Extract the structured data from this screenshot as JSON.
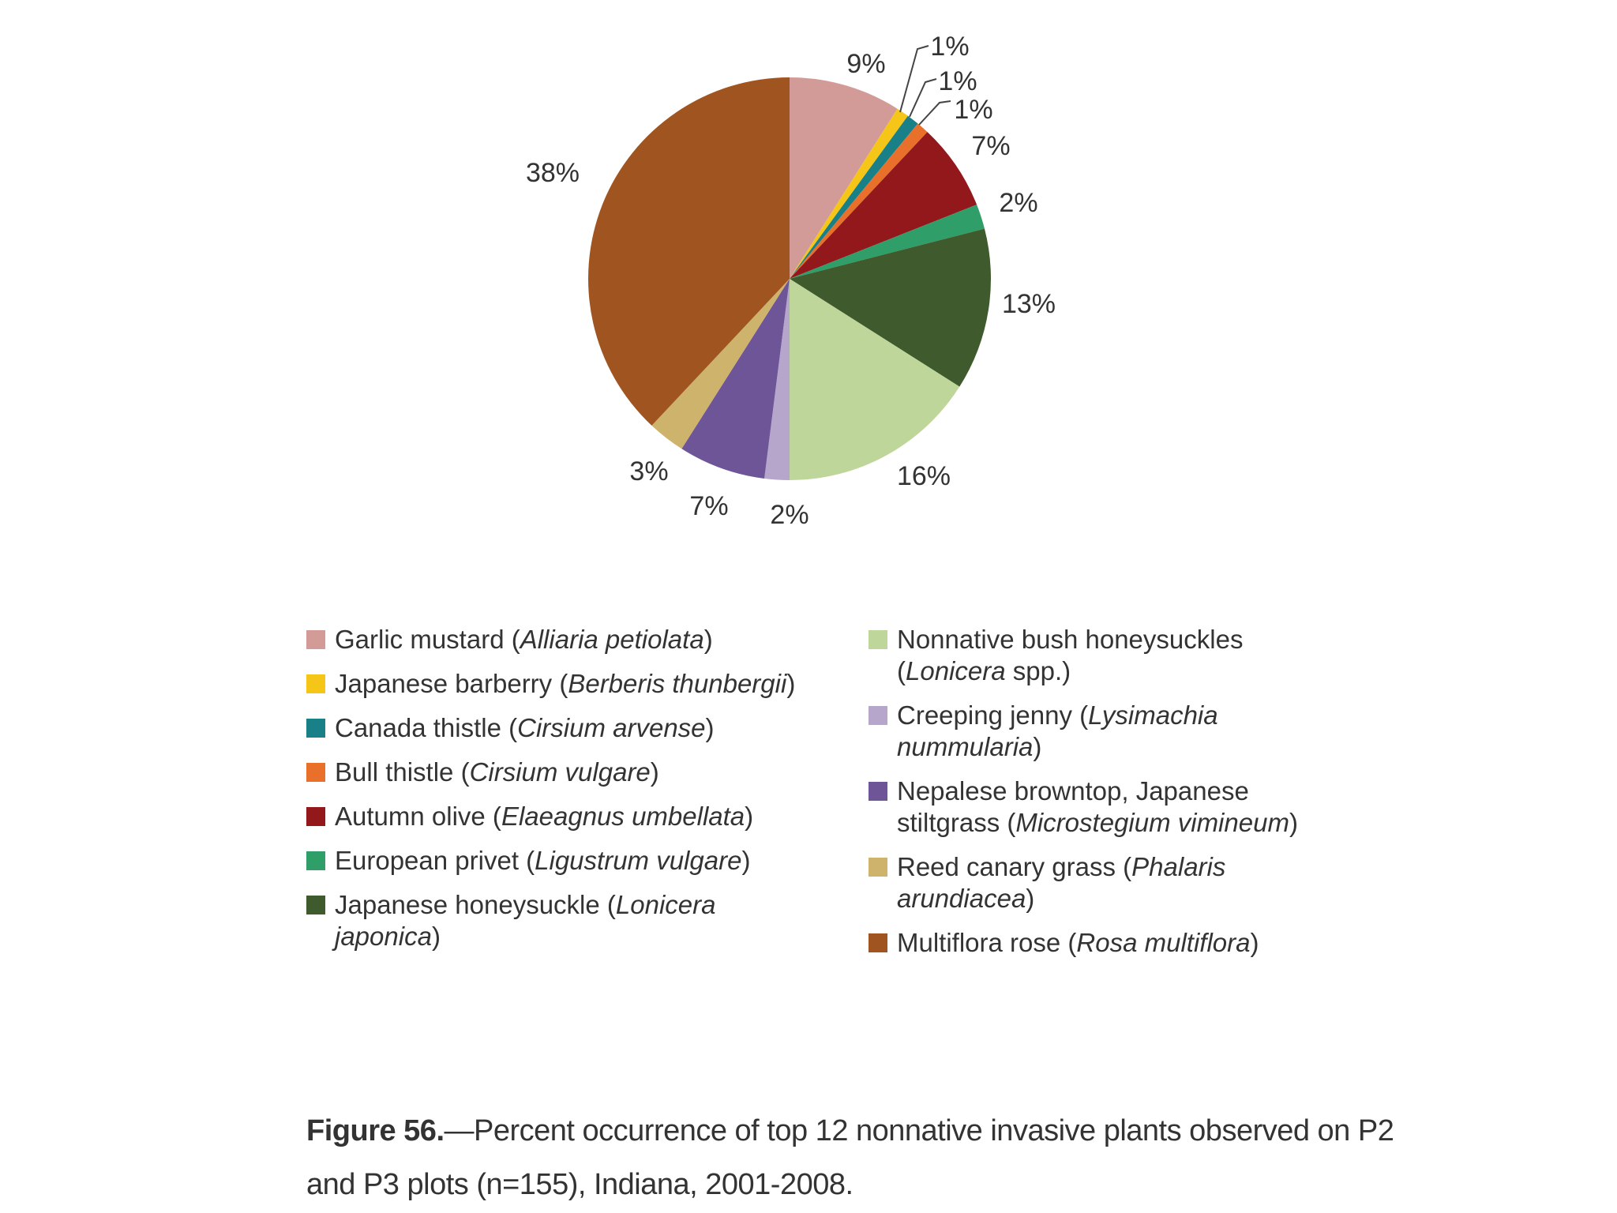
{
  "chart_data": {
    "type": "pie",
    "slices": [
      {
        "value": 9,
        "label": "9%",
        "color": "#D39B98"
      },
      {
        "value": 1,
        "label": "1%",
        "color": "#F5C518"
      },
      {
        "value": 1,
        "label": "1%",
        "color": "#1A8088"
      },
      {
        "value": 1,
        "label": "1%",
        "color": "#E8702A"
      },
      {
        "value": 7,
        "label": "7%",
        "color": "#93181C"
      },
      {
        "value": 2,
        "label": "2%",
        "color": "#2F9E68"
      },
      {
        "value": 13,
        "label": "13%",
        "color": "#3F5A2C"
      },
      {
        "value": 16,
        "label": "16%",
        "color": "#BFD69B"
      },
      {
        "value": 2,
        "label": "2%",
        "color": "#B7A6CB"
      },
      {
        "value": 7,
        "label": "7%",
        "color": "#6E5597"
      },
      {
        "value": 3,
        "label": "3%",
        "color": "#CDB36C"
      },
      {
        "value": 38,
        "label": "38%",
        "color": "#A0541F"
      }
    ],
    "legend": {
      "left": [
        {
          "name": "Garlic mustard (",
          "sci": "Alliaria petiolata",
          "end": ")",
          "color": "#D39B98"
        },
        {
          "name": "Japanese barberry (",
          "sci": "Berberis thunbergii",
          "end": ")",
          "color": "#F5C518"
        },
        {
          "name": "Canada thistle (",
          "sci": "Cirsium arvense",
          "end": ")",
          "color": "#1A8088"
        },
        {
          "name": "Bull thistle (",
          "sci": "Cirsium vulgare",
          "end": ")",
          "color": "#E8702A"
        },
        {
          "name": "Autumn olive (",
          "sci": "Elaeagnus umbellata",
          "end": ")",
          "color": "#93181C"
        },
        {
          "name": "European privet (",
          "sci": "Ligustrum vulgare",
          "end": ")",
          "color": "#2F9E68"
        },
        {
          "name": "Japanese honeysuckle (",
          "sci": "Lonicera japonica",
          "end": ")",
          "color": "#3F5A2C"
        }
      ],
      "right": [
        {
          "name": "Nonnative bush honeysuckles (",
          "sci": "Lonicera",
          "end": " spp.)",
          "color": "#BFD69B"
        },
        {
          "name": "Creeping jenny (",
          "sci": "Lysimachia nummularia",
          "end": ")",
          "color": "#B7A6CB"
        },
        {
          "name": "Nepalese browntop, Japanese stiltgrass (",
          "sci": "Microstegium vimineum",
          "end": ")",
          "color": "#6E5597"
        },
        {
          "name": "Reed canary grass (",
          "sci": "Phalaris arundiacea",
          "end": ")",
          "color": "#CDB36C"
        },
        {
          "name": "Multiflora rose (",
          "sci": "Rosa multiflora",
          "end": ")",
          "color": "#A0541F"
        }
      ]
    }
  },
  "caption": {
    "figure": "Figure 56.",
    "text": "—Percent occurrence of top 12 nonnative invasive plants observed on P2 and P3 plots (n=155), Indiana, 2001-2008."
  }
}
